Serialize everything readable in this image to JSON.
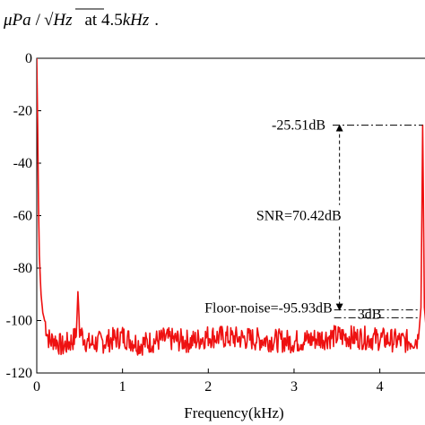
{
  "caption": {
    "unit_mu": "μ",
    "unit_pa": "Pa",
    "slash": "/",
    "unit_hz": "Hz",
    "at_text": "at 4.5",
    "freq_unit": "kHz",
    "period": "."
  },
  "chart_data": {
    "type": "line",
    "title": "",
    "xlabel": "Frequency(kHz)",
    "ylabel": "",
    "xlim": [
      0,
      4.6
    ],
    "ylim": [
      -120,
      0
    ],
    "xticks": [
      0,
      1,
      2,
      3,
      4
    ],
    "xtick_labels": [
      "0",
      "1",
      "2",
      "3",
      "4"
    ],
    "yticks": [
      0,
      -20,
      -40,
      -60,
      -80,
      -100,
      -120
    ],
    "ytick_labels": [
      "0",
      "-20",
      "-40",
      "-60",
      "-80",
      "-100",
      "-120"
    ],
    "grid": false,
    "line_color": "#ee1111",
    "series": [
      {
        "x": [
          0.0,
          0.01,
          0.02,
          0.03,
          0.05,
          0.07,
          0.1,
          0.13,
          0.16,
          0.2,
          0.3,
          0.4,
          0.46,
          0.48,
          0.5,
          0.6,
          0.8,
          1.0,
          1.2,
          1.5,
          1.8,
          2.0,
          2.5,
          3.0,
          3.5,
          4.0,
          4.3,
          4.45,
          4.48,
          4.49,
          4.5,
          4.51,
          4.52,
          4.55,
          4.6
        ],
        "y": [
          0,
          -25,
          -55,
          -75,
          -90,
          -97,
          -101,
          -106,
          -108,
          -107,
          -110,
          -108,
          -106,
          -89,
          -104,
          -109,
          -108,
          -106,
          -109,
          -107,
          -108,
          -106,
          -107,
          -108,
          -106,
          -107,
          -108,
          -107,
          -95,
          -60,
          -25.51,
          -60,
          -95,
          -107,
          -108
        ]
      }
    ],
    "annotations": {
      "peak_label": "-25.51dB",
      "snr_label": "SNR=70.42dB",
      "floor_label": "Floor-noise=-95.93dB",
      "db3_label": "3dB",
      "peak_value": -25.51,
      "floor_value": -95.93,
      "floor_lower_value": -98.93,
      "snr_x": 3.53,
      "peak_line_x_start": 3.45,
      "db3_line_x_end": 4.45
    }
  }
}
